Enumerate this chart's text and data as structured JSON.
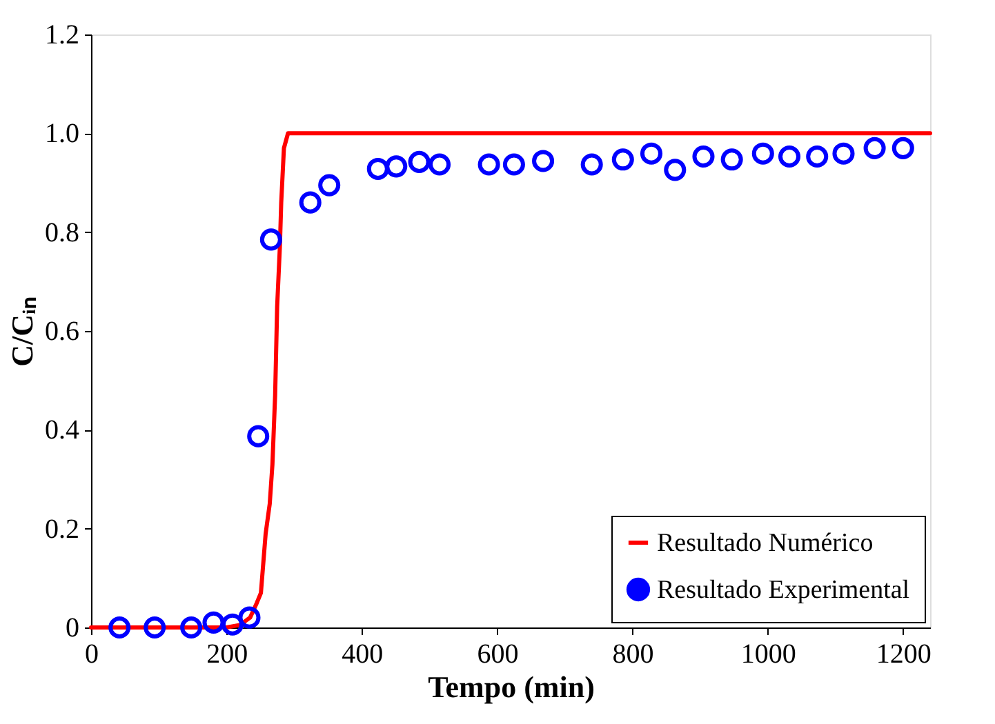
{
  "chart_data": {
    "type": "scatter",
    "xlabel": "Tempo (min)",
    "ylabel": "C/Cᵢₙ",
    "xlim": [
      0,
      1240
    ],
    "ylim": [
      0,
      1.2
    ],
    "xticks": [
      0,
      200,
      400,
      600,
      800,
      1000,
      1200
    ],
    "yticks": [
      0,
      {
        "value": 0.2,
        "label": "0.2"
      },
      {
        "value": 0.4,
        "label": "0.4"
      },
      {
        "value": 0.6,
        "label": "0.6"
      },
      {
        "value": 0.8,
        "label": "0.8"
      },
      {
        "value": 1,
        "label": "1.0"
      },
      {
        "value": 1.2,
        "label": "1.2"
      }
    ],
    "grid": false,
    "legend": "bottom right",
    "series": [
      {
        "name": "Resultado Numérico",
        "type": "line",
        "color": "#ff0000",
        "line_style": "solid",
        "x": [
          0,
          200,
          220,
          235,
          245,
          251,
          258,
          264,
          268,
          272,
          275,
          279,
          281,
          285,
          291,
          1240
        ],
        "values": [
          0,
          0,
          0.005,
          0.02,
          0.05,
          0.07,
          0.19,
          0.25,
          0.33,
          0.47,
          0.65,
          0.77,
          0.86,
          0.97,
          1.0,
          1.0
        ]
      },
      {
        "name": "Resultado Experimental",
        "color": "#0000ff",
        "marker": "circle",
        "x": [
          42,
          94,
          148,
          181,
          209,
          234,
          247,
          266,
          324,
          352,
          424,
          451,
          485,
          515,
          588,
          625,
          668,
          740,
          786,
          828,
          863,
          905,
          947,
          993,
          1032,
          1073,
          1112,
          1158,
          1200
        ],
        "values": [
          0,
          0,
          0,
          0.01,
          0.006,
          0.02,
          0.387,
          0.785,
          0.86,
          0.895,
          0.928,
          0.933,
          0.942,
          0.937,
          0.937,
          0.937,
          0.944,
          0.937,
          0.947,
          0.959,
          0.926,
          0.953,
          0.947,
          0.959,
          0.953,
          0.953,
          0.959,
          0.97,
          0.97
        ]
      }
    ]
  }
}
